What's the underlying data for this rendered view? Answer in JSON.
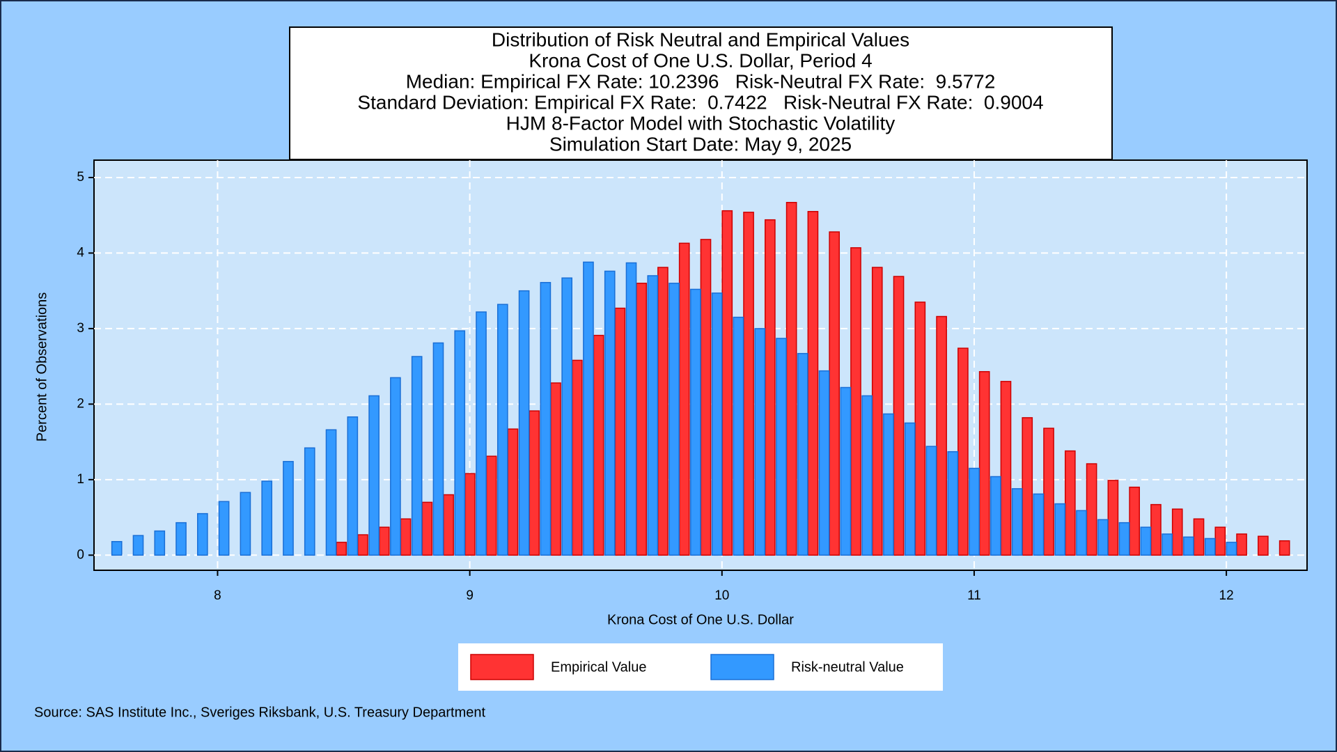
{
  "chart_data": {
    "type": "bar",
    "title": [
      "Distribution of Risk Neutral and Empirical Values",
      "Krona Cost of One U.S. Dollar, Period 4",
      "Median: Empirical FX Rate: 10.2396   Risk-Neutral FX Rate:  9.5772",
      "Standard Deviation: Empirical FX Rate:  0.7422   Risk-Neutral FX Rate:  0.9004",
      "HJM 8-Factor Model with Stochastic Volatility",
      "Simulation Start Date: May 9, 2025"
    ],
    "x_label": "Krona Cost of One U.S. Dollar",
    "y_label": "Percent of Observations",
    "source": "Source: SAS Institute Inc., Sveriges Riksbank, U.S. Treasury Department",
    "x": [
      7.578,
      7.663,
      7.748,
      7.833,
      7.918,
      8.003,
      8.088,
      8.173,
      8.258,
      8.343,
      8.428,
      8.513,
      8.598,
      8.683,
      8.768,
      8.853,
      8.938,
      9.023,
      9.108,
      9.193,
      9.278,
      9.363,
      9.448,
      9.533,
      9.618,
      9.703,
      9.788,
      9.873,
      9.958,
      10.043,
      10.128,
      10.213,
      10.298,
      10.383,
      10.468,
      10.553,
      10.638,
      10.723,
      10.808,
      10.893,
      10.978,
      11.063,
      11.148,
      11.233,
      11.318,
      11.403,
      11.488,
      11.573,
      11.658,
      11.743,
      11.828,
      11.913,
      11.998,
      12.083,
      12.168,
      12.253
    ],
    "series": [
      {
        "name": "Empirical Value",
        "color": "#ff3333",
        "values": [
          null,
          null,
          null,
          null,
          null,
          null,
          null,
          null,
          null,
          null,
          null,
          0.17,
          0.27,
          0.37,
          0.48,
          0.7,
          0.8,
          1.08,
          1.31,
          1.67,
          1.91,
          2.28,
          2.58,
          2.91,
          3.27,
          3.6,
          3.81,
          4.13,
          4.18,
          4.56,
          4.54,
          4.44,
          4.67,
          4.55,
          4.28,
          4.07,
          3.81,
          3.69,
          3.35,
          3.16,
          2.74,
          2.43,
          2.3,
          1.82,
          1.68,
          1.38,
          1.21,
          0.99,
          0.9,
          0.67,
          0.61,
          0.48,
          0.37,
          0.28,
          0.25,
          0.19
        ]
      },
      {
        "name": "Risk-neutral Value",
        "color": "#3399ff",
        "values": [
          0.18,
          0.26,
          0.32,
          0.43,
          0.55,
          0.71,
          0.83,
          0.98,
          1.24,
          1.42,
          1.66,
          1.83,
          2.11,
          2.35,
          2.63,
          2.81,
          2.97,
          3.22,
          3.32,
          3.5,
          3.61,
          3.67,
          3.88,
          3.76,
          3.87,
          3.7,
          3.6,
          3.52,
          3.47,
          3.15,
          3.0,
          2.87,
          2.67,
          2.44,
          2.22,
          2.11,
          1.87,
          1.75,
          1.44,
          1.37,
          1.15,
          1.04,
          0.88,
          0.81,
          0.68,
          0.59,
          0.47,
          0.43,
          0.37,
          0.28,
          0.24,
          0.22,
          0.17,
          null,
          null,
          null
        ]
      }
    ],
    "xlim": [
      7.51,
      12.32
    ],
    "ylim": [
      -0.2,
      5.23
    ],
    "xticks": [
      8,
      9,
      10,
      11,
      12
    ],
    "yticks": [
      0,
      1,
      2,
      3,
      4,
      5
    ],
    "grid": true
  }
}
